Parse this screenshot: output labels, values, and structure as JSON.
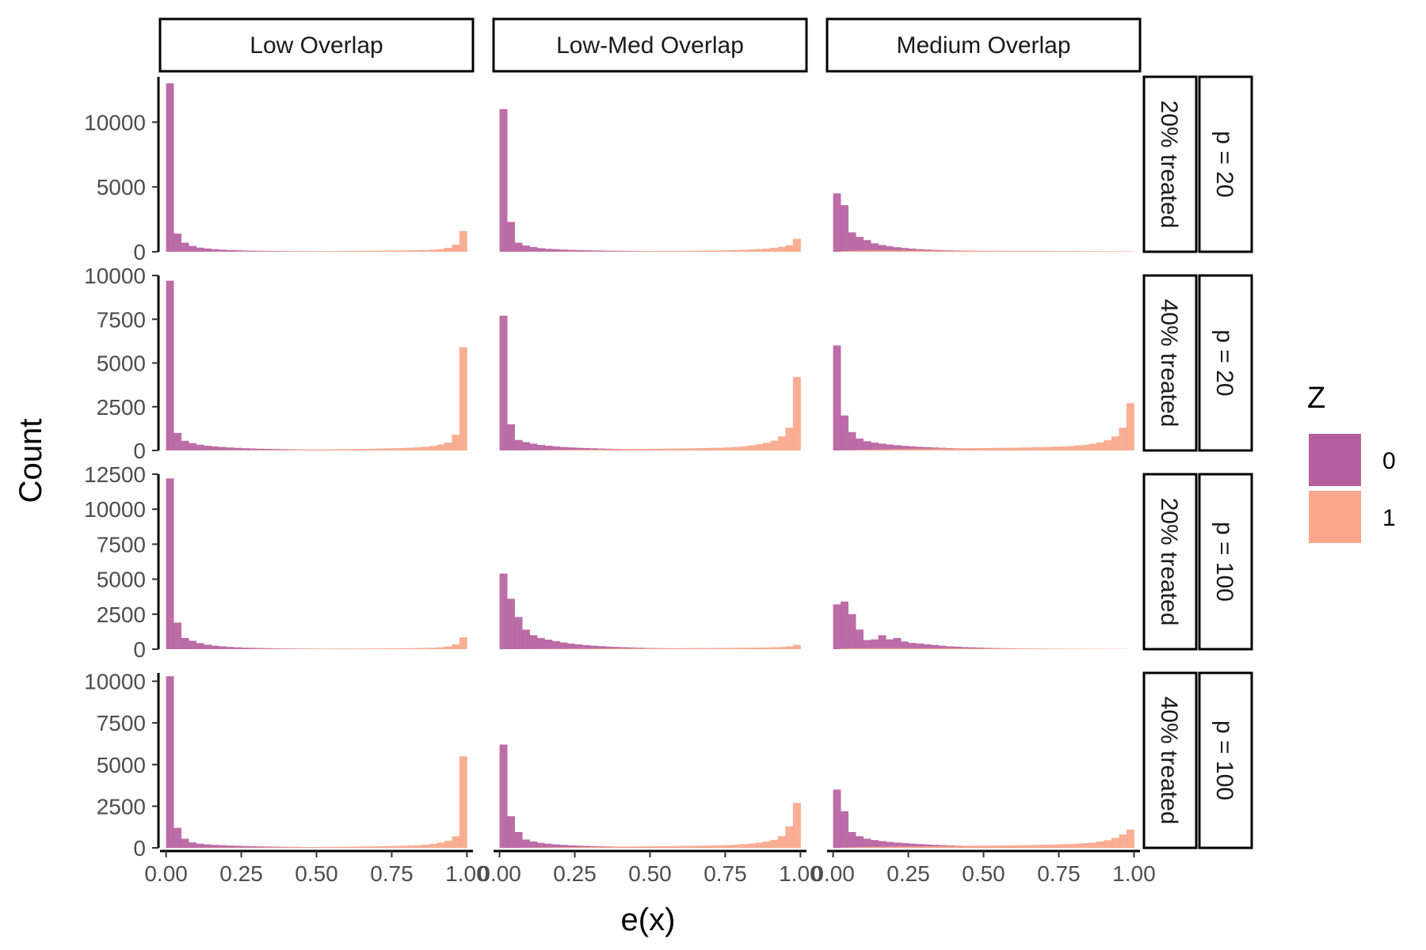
{
  "chart_data": {
    "type": "bar",
    "subtype": "faceted-histogram",
    "xlabel": "e(x)",
    "ylabel": "Count",
    "xlim": [
      -0.02,
      1.02
    ],
    "x_ticks": [
      "0.00",
      "0.25",
      "0.50",
      "0.75",
      "1.00"
    ],
    "x_tick_values": [
      0,
      0.25,
      0.5,
      0.75,
      1.0
    ],
    "bins": 40,
    "grid": false,
    "column_facets": [
      "Low Overlap",
      "Low-Med Overlap",
      "Medium Overlap"
    ],
    "row_facets": [
      {
        "treated": "20% treated",
        "p": "p = 20",
        "ylim": [
          0,
          13500
        ],
        "y_ticks": [
          0,
          5000,
          10000
        ],
        "y_tick_labels": [
          "0",
          "5000",
          "10000"
        ]
      },
      {
        "treated": "40% treated",
        "p": "p = 20",
        "ylim": [
          0,
          10000
        ],
        "y_ticks": [
          0,
          2500,
          5000,
          7500,
          10000
        ],
        "y_tick_labels": [
          "0",
          "2500",
          "5000",
          "7500",
          "10000"
        ]
      },
      {
        "treated": "20% treated",
        "p": "p = 100",
        "ylim": [
          0,
          12500
        ],
        "y_ticks": [
          0,
          2500,
          5000,
          7500,
          10000,
          12500
        ],
        "y_tick_labels": [
          "0",
          "2500",
          "5000",
          "7500",
          "10000",
          "12500"
        ]
      },
      {
        "treated": "40% treated",
        "p": "p = 100",
        "ylim": [
          0,
          10500
        ],
        "y_ticks": [
          0,
          2500,
          5000,
          7500,
          10000
        ],
        "y_tick_labels": [
          "0",
          "2500",
          "5000",
          "7500",
          "10000"
        ]
      }
    ],
    "legend": {
      "title": "Z",
      "position": "right",
      "entries": [
        {
          "label": "0",
          "color": "#b65f9f"
        },
        {
          "label": "1",
          "color": "#f9a68a"
        }
      ]
    },
    "panels": [
      {
        "row": 0,
        "col": 0,
        "z0": [
          13000,
          1400,
          700,
          450,
          320,
          250,
          200,
          160,
          130,
          110,
          95,
          85,
          75,
          65,
          60,
          55,
          50,
          45,
          40,
          38,
          35,
          32,
          30,
          28,
          26,
          24,
          22,
          20,
          18,
          16,
          14,
          12,
          10,
          9,
          8,
          7,
          6,
          5,
          4,
          3
        ],
        "z1": [
          0,
          0,
          0,
          0,
          5,
          8,
          10,
          12,
          14,
          16,
          18,
          20,
          22,
          25,
          28,
          30,
          33,
          36,
          40,
          44,
          48,
          52,
          56,
          60,
          65,
          70,
          75,
          80,
          85,
          90,
          95,
          100,
          110,
          120,
          140,
          160,
          200,
          300,
          550,
          1600
        ]
      },
      {
        "row": 0,
        "col": 1,
        "z0": [
          11000,
          2300,
          700,
          480,
          360,
          280,
          230,
          200,
          170,
          150,
          130,
          115,
          105,
          95,
          85,
          78,
          70,
          64,
          58,
          52,
          48,
          44,
          40,
          36,
          33,
          30,
          27,
          24,
          21,
          18,
          16,
          14,
          12,
          10,
          9,
          8,
          7,
          6,
          5,
          4
        ],
        "z1": [
          0,
          0,
          0,
          0,
          8,
          10,
          12,
          14,
          16,
          18,
          20,
          22,
          25,
          28,
          30,
          33,
          36,
          40,
          44,
          48,
          52,
          56,
          60,
          65,
          70,
          76,
          82,
          88,
          95,
          105,
          115,
          130,
          150,
          170,
          200,
          240,
          300,
          380,
          500,
          1000
        ]
      },
      {
        "row": 0,
        "col": 2,
        "z0": [
          4500,
          3600,
          1500,
          1150,
          900,
          650,
          520,
          420,
          350,
          290,
          240,
          200,
          175,
          150,
          130,
          115,
          100,
          90,
          80,
          72,
          64,
          57,
          50,
          45,
          40,
          36,
          32,
          28,
          25,
          22,
          19,
          16,
          14,
          12,
          10,
          8,
          7,
          6,
          5,
          4
        ],
        "z1": [
          0,
          60,
          80,
          90,
          95,
          100,
          100,
          100,
          100,
          100,
          98,
          95,
          92,
          90,
          88,
          86,
          84,
          82,
          80,
          78,
          76,
          74,
          72,
          70,
          68,
          66,
          64,
          62,
          60,
          58,
          56,
          54,
          52,
          50,
          48,
          46,
          44,
          42,
          40,
          30
        ]
      },
      {
        "row": 1,
        "col": 0,
        "z0": [
          9700,
          1000,
          550,
          420,
          330,
          270,
          230,
          200,
          170,
          150,
          130,
          115,
          100,
          90,
          80,
          72,
          64,
          58,
          52,
          47,
          43,
          40,
          37,
          34,
          31,
          28,
          26,
          24,
          22,
          20,
          18,
          16,
          14,
          12,
          10,
          9,
          8,
          7,
          6,
          5
        ],
        "z1": [
          0,
          0,
          0,
          0,
          10,
          12,
          14,
          16,
          18,
          20,
          22,
          25,
          28,
          31,
          34,
          37,
          40,
          44,
          48,
          52,
          57,
          62,
          67,
          72,
          78,
          84,
          90,
          98,
          106,
          115,
          125,
          140,
          160,
          180,
          210,
          260,
          340,
          450,
          900,
          5900
        ]
      },
      {
        "row": 1,
        "col": 1,
        "z0": [
          7700,
          1500,
          600,
          480,
          390,
          320,
          270,
          230,
          200,
          175,
          155,
          140,
          125,
          112,
          100,
          90,
          81,
          73,
          66,
          60,
          54,
          49,
          45,
          41,
          37,
          34,
          31,
          28,
          25,
          22,
          20,
          18,
          16,
          14,
          12,
          10,
          9,
          8,
          7,
          6
        ],
        "z1": [
          0,
          0,
          0,
          10,
          15,
          20,
          25,
          30,
          35,
          40,
          45,
          50,
          55,
          60,
          65,
          70,
          75,
          80,
          85,
          90,
          95,
          100,
          105,
          110,
          115,
          120,
          130,
          140,
          150,
          160,
          180,
          200,
          240,
          290,
          360,
          440,
          560,
          800,
          1300,
          4200
        ]
      },
      {
        "row": 1,
        "col": 2,
        "z0": [
          6000,
          2000,
          1050,
          680,
          530,
          450,
          390,
          340,
          300,
          265,
          235,
          210,
          190,
          170,
          152,
          137,
          123,
          110,
          99,
          89,
          80,
          72,
          65,
          58,
          52,
          47,
          42,
          38,
          34,
          30,
          27,
          24,
          21,
          18,
          16,
          14,
          12,
          10,
          8,
          6
        ],
        "z1": [
          0,
          10,
          20,
          30,
          40,
          50,
          60,
          70,
          80,
          85,
          90,
          95,
          100,
          105,
          110,
          115,
          120,
          125,
          130,
          135,
          140,
          145,
          150,
          155,
          160,
          170,
          180,
          190,
          200,
          215,
          230,
          250,
          280,
          320,
          380,
          460,
          580,
          800,
          1300,
          2700
        ]
      },
      {
        "row": 2,
        "col": 0,
        "z0": [
          12200,
          1900,
          800,
          600,
          430,
          320,
          250,
          200,
          160,
          130,
          110,
          95,
          82,
          70,
          62,
          55,
          49,
          44,
          40,
          36,
          33,
          30,
          27,
          24,
          22,
          20,
          18,
          16,
          14,
          12,
          11,
          10,
          9,
          8,
          7,
          6,
          5,
          4,
          3,
          2
        ],
        "z1": [
          0,
          0,
          0,
          0,
          4,
          6,
          8,
          10,
          12,
          14,
          16,
          18,
          20,
          22,
          24,
          26,
          28,
          30,
          32,
          34,
          36,
          38,
          40,
          42,
          44,
          46,
          48,
          50,
          54,
          58,
          62,
          66,
          72,
          80,
          90,
          110,
          140,
          200,
          350,
          850
        ]
      },
      {
        "row": 2,
        "col": 1,
        "z0": [
          5400,
          3600,
          2300,
          1400,
          1000,
          800,
          680,
          580,
          480,
          400,
          340,
          290,
          250,
          215,
          185,
          160,
          140,
          122,
          106,
          92,
          80,
          70,
          61,
          53,
          46,
          40,
          35,
          30,
          26,
          22,
          19,
          16,
          14,
          12,
          10,
          8,
          7,
          6,
          5,
          4
        ],
        "z1": [
          0,
          0,
          0,
          8,
          12,
          16,
          20,
          24,
          28,
          32,
          36,
          40,
          44,
          48,
          52,
          55,
          58,
          60,
          62,
          64,
          66,
          68,
          70,
          72,
          74,
          76,
          78,
          80,
          84,
          88,
          92,
          96,
          100,
          108,
          116,
          126,
          140,
          160,
          200,
          300
        ]
      },
      {
        "row": 2,
        "col": 2,
        "z0": [
          3200,
          3400,
          2500,
          1400,
          650,
          700,
          1000,
          700,
          800,
          550,
          450,
          400,
          350,
          300,
          250,
          200,
          180,
          150,
          130,
          110,
          95,
          80,
          70,
          60,
          50,
          44,
          38,
          32,
          27,
          22,
          18,
          15,
          12,
          10,
          8,
          6,
          5,
          4,
          3,
          2
        ],
        "z1": [
          0,
          50,
          60,
          70,
          75,
          80,
          80,
          78,
          76,
          74,
          72,
          70,
          68,
          66,
          64,
          62,
          60,
          58,
          56,
          54,
          52,
          50,
          48,
          46,
          44,
          42,
          40,
          38,
          36,
          34,
          32,
          30,
          28,
          26,
          24,
          22,
          20,
          18,
          16,
          0
        ]
      },
      {
        "row": 3,
        "col": 0,
        "z0": [
          10300,
          1200,
          550,
          330,
          250,
          210,
          180,
          160,
          140,
          125,
          110,
          98,
          88,
          80,
          72,
          65,
          59,
          54,
          49,
          45,
          41,
          38,
          35,
          32,
          29,
          26,
          24,
          22,
          20,
          18,
          16,
          14,
          12,
          10,
          9,
          8,
          7,
          6,
          5,
          4
        ],
        "z1": [
          0,
          0,
          0,
          0,
          8,
          10,
          12,
          14,
          16,
          18,
          20,
          22,
          25,
          28,
          31,
          34,
          37,
          40,
          44,
          48,
          52,
          57,
          62,
          67,
          72,
          78,
          84,
          90,
          98,
          106,
          115,
          125,
          140,
          160,
          190,
          240,
          320,
          420,
          700,
          5500
        ]
      },
      {
        "row": 3,
        "col": 1,
        "z0": [
          6200,
          1900,
          950,
          500,
          380,
          300,
          250,
          210,
          180,
          155,
          135,
          120,
          107,
          95,
          85,
          76,
          68,
          61,
          55,
          49,
          44,
          40,
          36,
          32,
          29,
          26,
          23,
          20,
          18,
          16,
          14,
          12,
          10,
          9,
          8,
          7,
          6,
          5,
          4,
          3
        ],
        "z1": [
          0,
          0,
          0,
          10,
          15,
          20,
          25,
          30,
          35,
          40,
          45,
          50,
          55,
          60,
          65,
          70,
          75,
          80,
          85,
          90,
          95,
          100,
          105,
          110,
          115,
          120,
          128,
          136,
          145,
          155,
          170,
          190,
          220,
          260,
          310,
          380,
          480,
          700,
          1300,
          2700
        ]
      },
      {
        "row": 3,
        "col": 2,
        "z0": [
          3500,
          2200,
          950,
          700,
          550,
          470,
          410,
          360,
          320,
          285,
          255,
          228,
          205,
          185,
          167,
          150,
          135,
          122,
          110,
          99,
          89,
          80,
          72,
          65,
          58,
          52,
          47,
          42,
          38,
          34,
          30,
          27,
          24,
          21,
          18,
          16,
          14,
          12,
          10,
          8
        ],
        "z1": [
          0,
          20,
          30,
          40,
          50,
          60,
          65,
          70,
          75,
          80,
          85,
          90,
          95,
          100,
          105,
          110,
          115,
          120,
          125,
          130,
          135,
          140,
          145,
          150,
          155,
          160,
          170,
          180,
          190,
          200,
          215,
          230,
          250,
          280,
          320,
          380,
          460,
          600,
          800,
          1100
        ]
      }
    ]
  }
}
